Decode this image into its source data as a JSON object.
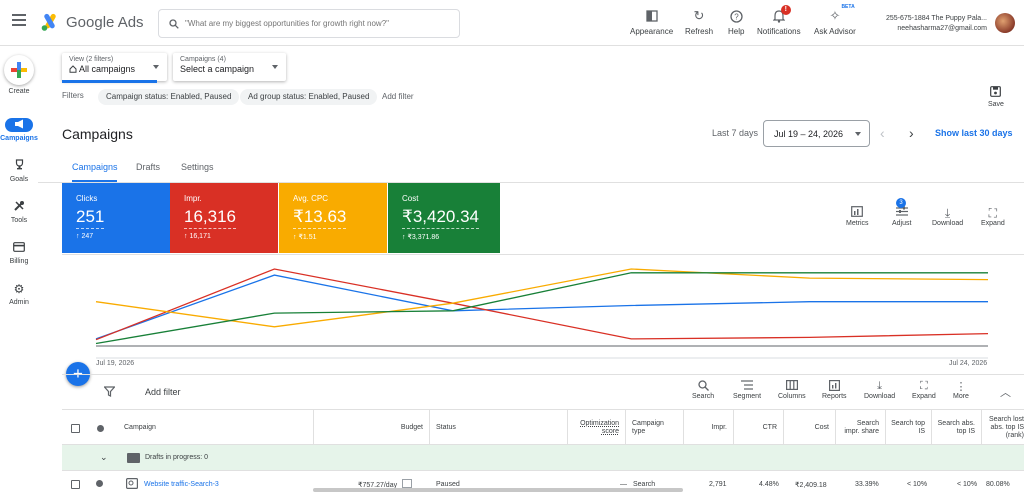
{
  "header": {
    "app_name": "Google Ads",
    "search_placeholder": "\"What are my biggest opportunities for growth right now?\"",
    "tools": [
      {
        "label": "Appearance",
        "icon": "appearance-icon"
      },
      {
        "label": "Refresh",
        "icon": "refresh-icon"
      },
      {
        "label": "Help",
        "icon": "help-icon"
      },
      {
        "label": "Notifications",
        "icon": "bell-icon",
        "badge": "!"
      },
      {
        "label": "Ask Advisor",
        "icon": "sparkle-icon",
        "badge": "BETA"
      }
    ],
    "account_line1": "255-675-1884 The Puppy Pala...",
    "account_line2": "neehasharma27@gmail.com"
  },
  "rail": {
    "create": "Create",
    "items": [
      {
        "label": "Campaigns",
        "icon": "megaphone-icon",
        "active": true
      },
      {
        "label": "Goals",
        "icon": "trophy-icon"
      },
      {
        "label": "Tools",
        "icon": "tools-icon"
      },
      {
        "label": "Billing",
        "icon": "credit-card-icon"
      },
      {
        "label": "Admin",
        "icon": "gear-icon"
      }
    ]
  },
  "filters_bar": {
    "view_small": "View (2 filters)",
    "view_main": "All campaigns",
    "campaign_small": "Campaigns (4)",
    "campaign_main": "Select a campaign",
    "filters_label": "Filters",
    "chips": [
      "Campaign status: Enabled, Paused",
      "Ad group status: Enabled, Paused"
    ],
    "add_filter": "Add filter",
    "save": "Save"
  },
  "page": {
    "title": "Campaigns",
    "range_label": "Last 7 days",
    "date_range": "Jul 19 – 24, 2026",
    "show_last": "Show last 30 days"
  },
  "tabs": [
    "Campaigns",
    "Drafts",
    "Settings"
  ],
  "metrics": [
    {
      "label": "Clicks",
      "value": "251",
      "delta": "↑ 247",
      "color": "#1a73e8"
    },
    {
      "label": "Impr.",
      "value": "16,316",
      "delta": "↑ 16,171",
      "color": "#d93025"
    },
    {
      "label": "Avg. CPC",
      "value": "₹13.63",
      "delta": "↑ ₹1.51",
      "color": "#f9ab00"
    },
    {
      "label": "Cost",
      "value": "₹3,420.34",
      "delta": "↑ ₹3,371.86",
      "color": "#188038"
    }
  ],
  "chart_tools": [
    {
      "label": "Metrics",
      "icon": "chart-add-icon"
    },
    {
      "label": "Adjust",
      "icon": "sliders-icon",
      "badge": "3"
    },
    {
      "label": "Download",
      "icon": "download-icon"
    },
    {
      "label": "Expand",
      "icon": "expand-icon"
    }
  ],
  "chart_data": {
    "type": "line",
    "x": [
      "Jul 19",
      "Jul 20",
      "Jul 21",
      "Jul 22",
      "Jul 23",
      "Jul 24"
    ],
    "x_tick_labels": [
      "Jul 19, 2026",
      "Jul 24, 2026"
    ],
    "series": [
      {
        "name": "Clicks",
        "color": "#1a73e8",
        "values": [
          0.08,
          0.92,
          0.45,
          0.52,
          0.57,
          0.57
        ]
      },
      {
        "name": "Impr.",
        "color": "#d93025",
        "values": [
          0.07,
          1.0,
          0.55,
          0.08,
          0.1,
          0.15
        ]
      },
      {
        "name": "Avg. CPC",
        "color": "#f9ab00",
        "values": [
          0.57,
          0.24,
          0.55,
          1.0,
          0.88,
          0.86
        ]
      },
      {
        "name": "Cost",
        "color": "#188038",
        "values": [
          0.02,
          0.42,
          0.45,
          0.95,
          0.95,
          0.95
        ]
      }
    ]
  },
  "table_toolbar": {
    "add_filter": "Add filter",
    "tools": [
      {
        "label": "Search",
        "icon": "search-icon"
      },
      {
        "label": "Segment",
        "icon": "segment-icon"
      },
      {
        "label": "Columns",
        "icon": "columns-icon"
      },
      {
        "label": "Reports",
        "icon": "reports-icon"
      },
      {
        "label": "Download",
        "icon": "download-icon"
      },
      {
        "label": "Expand",
        "icon": "expand-icon"
      },
      {
        "label": "More",
        "icon": "more-vert-icon"
      }
    ]
  },
  "table": {
    "headers": {
      "campaign": "Campaign",
      "budget": "Budget",
      "status": "Status",
      "opt1": "Optimization",
      "opt2": "score",
      "type1": "Campaign",
      "type2": "type",
      "impr": "Impr.",
      "ctr": "CTR",
      "cost": "Cost",
      "sis1": "Search",
      "sis2": "impr. share",
      "stop1": "Search top",
      "stop2": "IS",
      "sabs1": "Search abs.",
      "sabs2": "top IS",
      "slost1": "Search lost",
      "slost2": "abs. top IS",
      "slost3": "(rank)"
    },
    "group": "Drafts in progress: 0",
    "row": {
      "campaign": "Website traffic-Search-3",
      "budget": "₹757.27/day",
      "status": "Paused",
      "opt": "—",
      "type": "Search",
      "impr": "2,791",
      "ctr": "4.48%",
      "cost": "₹2,409.18",
      "sis": "33.39%",
      "stop": "< 10%",
      "sabs": "< 10%",
      "slost": "80.08%"
    }
  }
}
